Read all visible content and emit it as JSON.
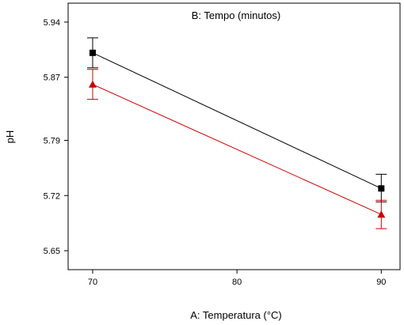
{
  "chart_data": {
    "type": "line",
    "title": "B: Tempo (minutos)",
    "xlabel": "A: Temperatura (°C)",
    "ylabel": "pH",
    "x": [
      70,
      90
    ],
    "xticks": [
      70,
      80,
      90
    ],
    "xtick_labels": [
      "70",
      "80",
      "90"
    ],
    "xlim": [
      68.3,
      91.3
    ],
    "yticks": [
      5.65,
      5.72,
      5.79,
      5.87,
      5.94
    ],
    "ytick_labels": [
      "5.65",
      "5.72",
      "5.79",
      "5.87",
      "5.94"
    ],
    "ylim": [
      5.626,
      5.964
    ],
    "grid": false,
    "series": [
      {
        "color": "#000000",
        "marker": "square",
        "values": [
          5.901,
          5.729
        ],
        "error_low": [
          5.882,
          5.712
        ],
        "error_high": [
          5.92,
          5.747
        ]
      },
      {
        "color": "#cc0000",
        "marker": "triangle",
        "values": [
          5.861,
          5.696
        ],
        "error_low": [
          5.842,
          5.678
        ],
        "error_high": [
          5.88,
          5.714
        ]
      }
    ]
  }
}
